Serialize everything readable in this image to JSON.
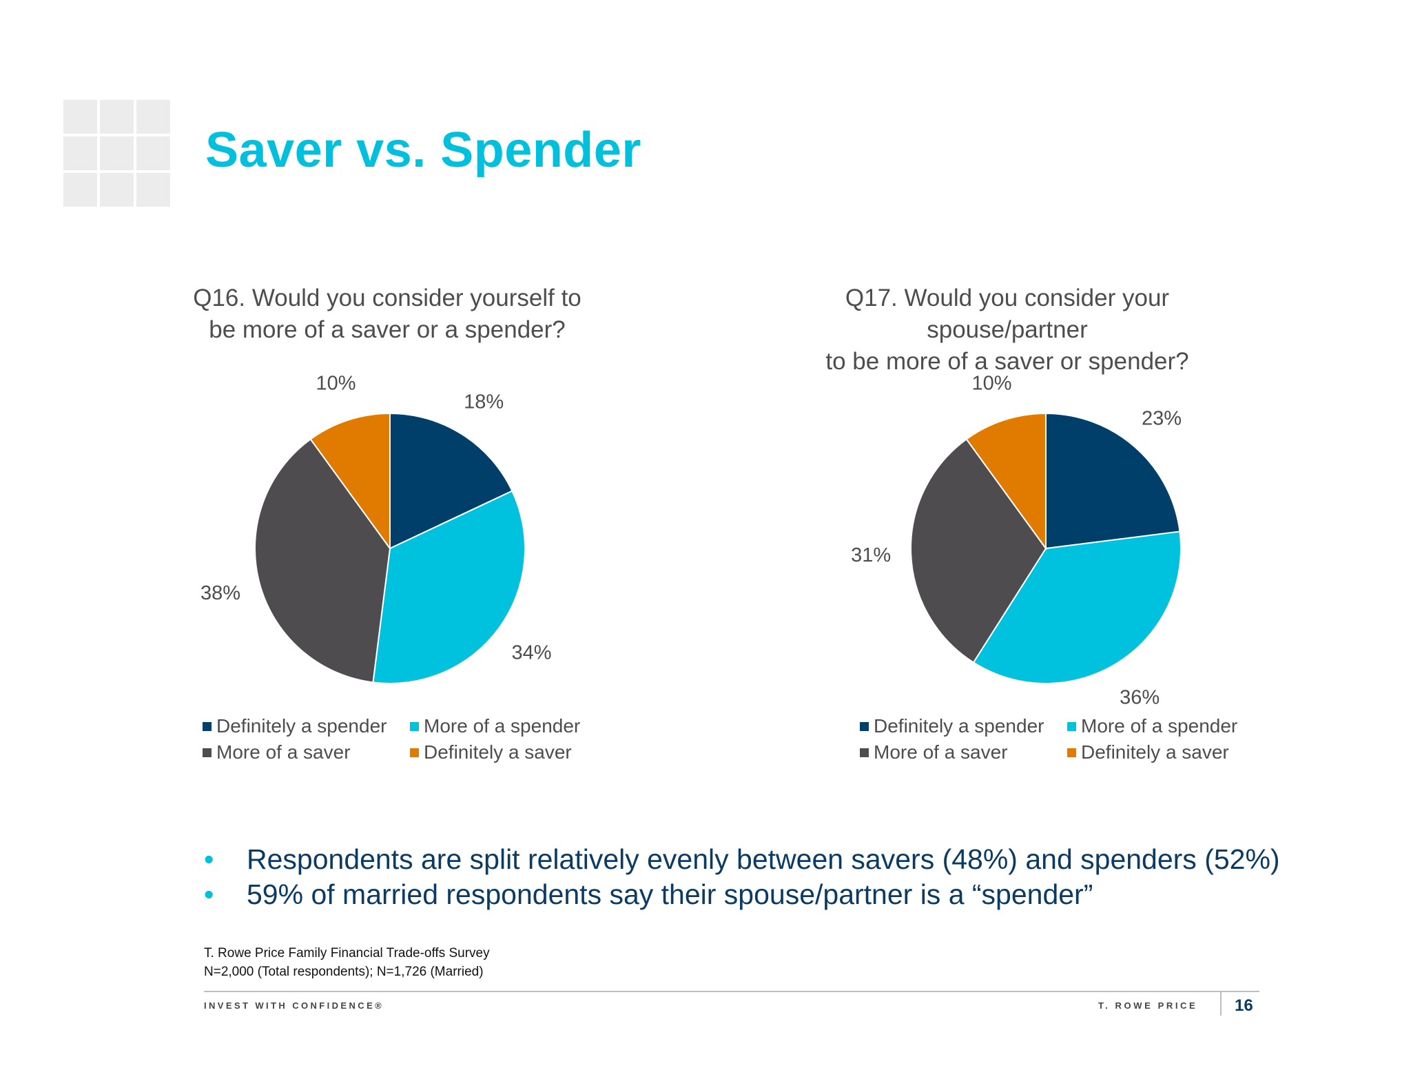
{
  "slide": {
    "title": "Saver vs. Spender",
    "bullets": [
      "Respondents are split relatively evenly between savers (48%) and spenders (52%)",
      "59% of married respondents say their spouse/partner is a “spender”"
    ],
    "bullet_glyph": "•",
    "source": [
      "T. Rowe Price Family Financial Trade-offs Survey",
      "N=2,000 (Total respondents); N=1,726 (Married)"
    ],
    "footer_left": "INVEST WITH CONFIDENCE®",
    "footer_right": "T. ROWE PRICE",
    "page_number": "16"
  },
  "colors": {
    "Definitely a spender": "#003f69",
    "More of a spender": "#00c2df",
    "More of a saver": "#4e4c4f",
    "Definitely a saver": "#e07b00"
  },
  "chart_data": [
    {
      "type": "pie",
      "title": "Q16. Would you consider yourself to\nbe more of a saver or a spender?",
      "categories": [
        "Definitely a spender",
        "More of a spender",
        "More of a saver",
        "Definitely a saver"
      ],
      "values": [
        18,
        34,
        38,
        10
      ],
      "data_labels": [
        "18%",
        "34%",
        "38%",
        "10%"
      ],
      "legend_position": "bottom"
    },
    {
      "type": "pie",
      "title": "Q17. Would you consider your spouse/partner\nto be more of a saver or spender?",
      "categories": [
        "Definitely a spender",
        "More of a spender",
        "More of a saver",
        "Definitely a saver"
      ],
      "values": [
        23,
        36,
        31,
        10
      ],
      "data_labels": [
        "23%",
        "36%",
        "31%",
        "10%"
      ],
      "legend_position": "bottom"
    }
  ]
}
